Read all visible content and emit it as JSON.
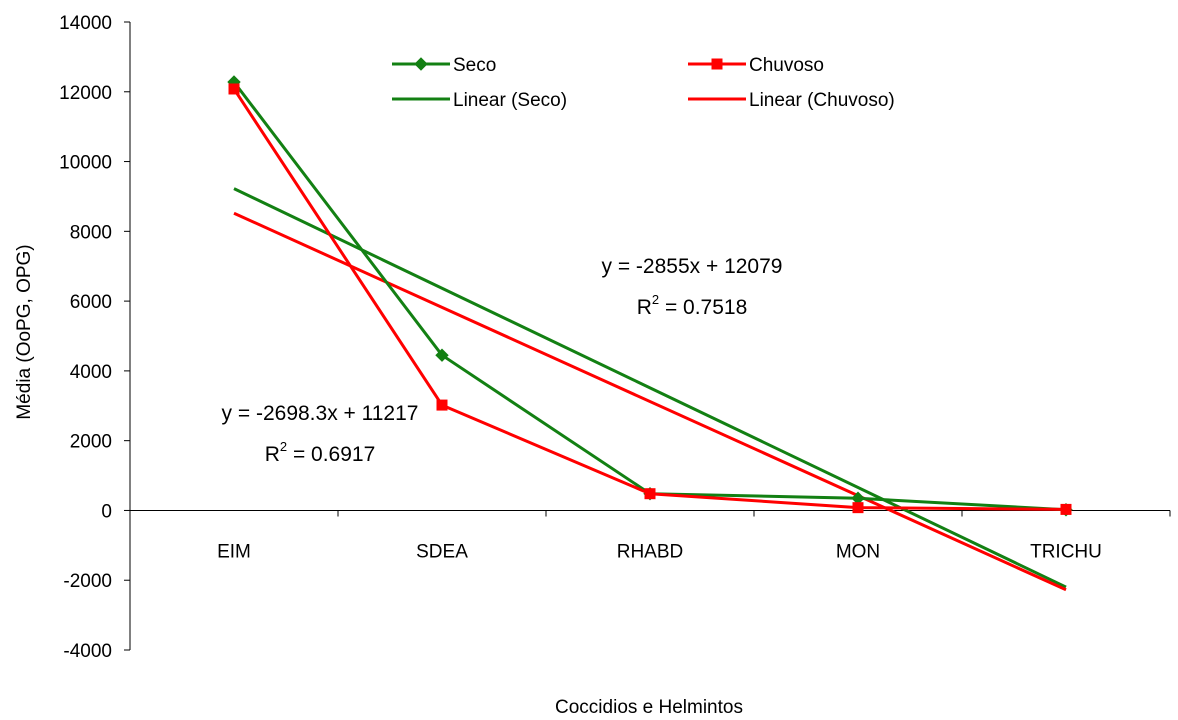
{
  "chart_data": {
    "type": "line",
    "xlabel": "Coccidios e Helmintos",
    "ylabel": "Média (OoPG, OPG)",
    "categories": [
      "EIM",
      "SDEA",
      "RHABD",
      "MON",
      "TRICHU"
    ],
    "ylim": [
      -4000,
      14000
    ],
    "yticks": [
      -4000,
      -2000,
      0,
      2000,
      4000,
      6000,
      8000,
      10000,
      12000,
      14000
    ],
    "series": [
      {
        "name": "Seco",
        "values": [
          12280,
          4450,
          480,
          350,
          20
        ],
        "color": "#138013",
        "marker": "diamond"
      },
      {
        "name": "Chuvoso",
        "values": [
          12080,
          3020,
          480,
          80,
          30
        ],
        "color": "#ff0000",
        "marker": "square"
      }
    ],
    "trendlines": [
      {
        "name": "Linear (Seco)",
        "slope": -2855,
        "intercept": 12079,
        "color": "#138013"
      },
      {
        "name": "Linear (Chuvoso)",
        "slope": -2698.3,
        "intercept": 11217,
        "color": "#ff0000"
      }
    ],
    "annotations": [
      {
        "equation": "y = -2855x + 12079",
        "r2_prefix": "R",
        "r2_sup": "2",
        "r2_value": " = 0.7518"
      },
      {
        "equation": "y = -2698.3x + 11217",
        "r2_prefix": "R",
        "r2_sup": "2",
        "r2_value": " = 0.6917"
      }
    ],
    "legend_position": "top-center",
    "grid": false
  }
}
